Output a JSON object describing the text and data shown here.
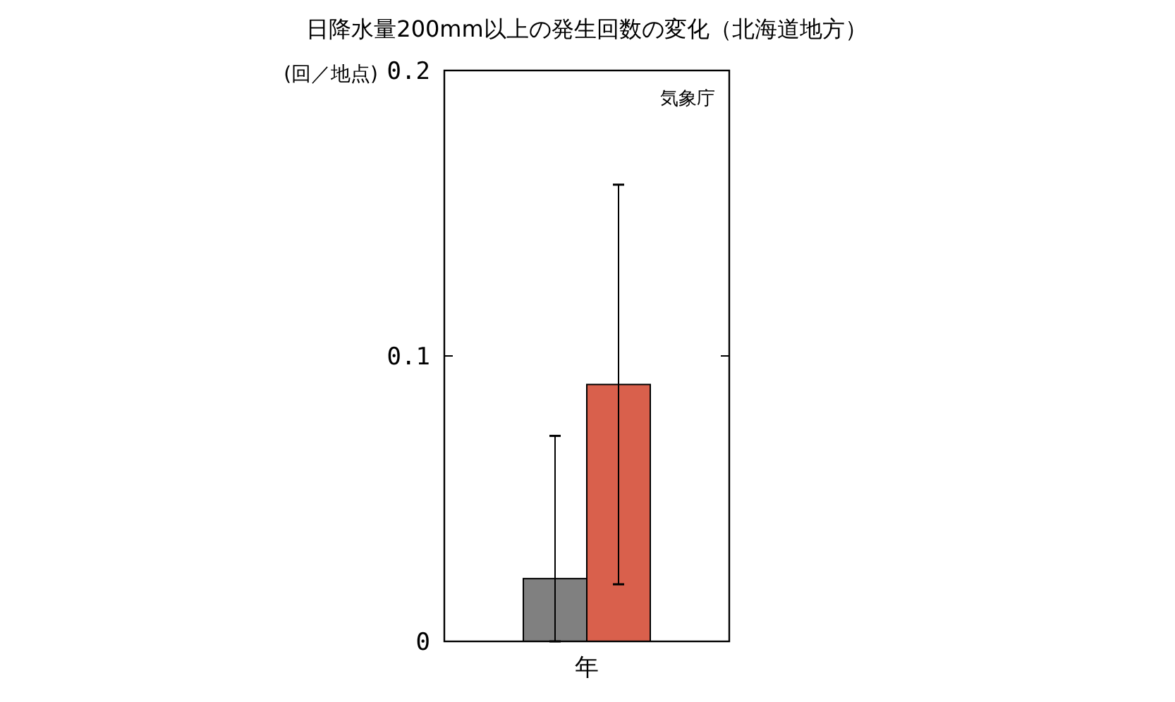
{
  "chart_data": {
    "type": "bar",
    "title": "日降水量200mm以上の発生回数の変化（北海道地方）",
    "ylabel": "(回／地点)",
    "annotations": [
      "気象庁"
    ],
    "categories": [
      "年"
    ],
    "series": [
      {
        "color": "#808080",
        "values": [
          0.022
        ],
        "errors": [
          [
            0,
            0.072
          ]
        ]
      },
      {
        "color": "#d9604c",
        "values": [
          0.09
        ],
        "errors": [
          [
            0.02,
            0.16
          ]
        ]
      }
    ],
    "ylim": [
      0,
      0.2
    ],
    "yticks": [
      0,
      0.1,
      0.2
    ],
    "grid": false
  }
}
